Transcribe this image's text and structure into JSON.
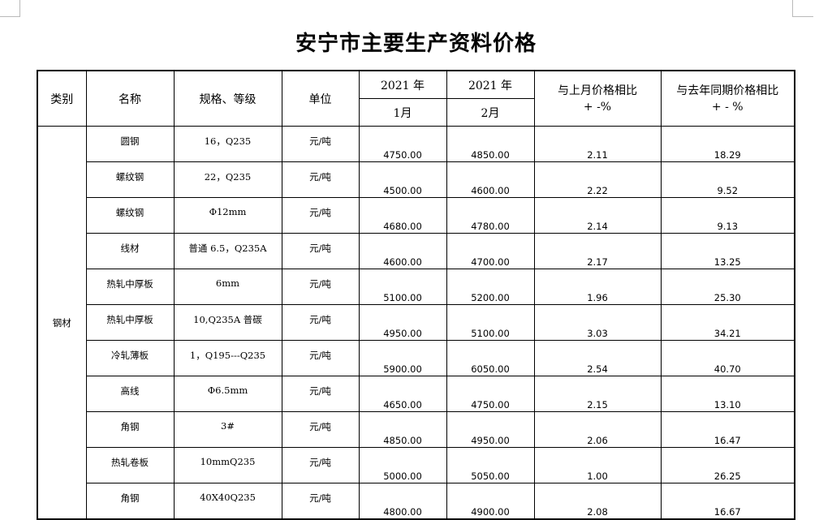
{
  "title": "安宁市主要生产资料价格",
  "headers": {
    "category": "类别",
    "name": "名称",
    "spec": "规格、等级",
    "unit": "单位",
    "year1": "2021 年",
    "year2": "2021 年",
    "month1": "1月",
    "month2": "2月",
    "vs_last_month_l1": "与上月价格相比",
    "vs_last_month_l2": "+ -%",
    "vs_last_year_l1": "与去年同期价格相比",
    "vs_last_year_l2": "+ - %"
  },
  "category": "钢材",
  "rows": [
    {
      "name": "圆钢",
      "spec": "16，Q235",
      "unit": "元/吨",
      "jan": "4750.00",
      "feb": "4850.00",
      "mom": "2.11",
      "yoy": "18.29"
    },
    {
      "name": "螺纹钢",
      "spec": "22，Q235",
      "unit": "元/吨",
      "jan": "4500.00",
      "feb": "4600.00",
      "mom": "2.22",
      "yoy": "9.52"
    },
    {
      "name": "螺纹钢",
      "spec": "Φ12mm",
      "unit": "元/吨",
      "jan": "4680.00",
      "feb": "4780.00",
      "mom": "2.14",
      "yoy": "9.13"
    },
    {
      "name": "线材",
      "spec": "普通 6.5，Q235A",
      "unit": "元/吨",
      "jan": "4600.00",
      "feb": "4700.00",
      "mom": "2.17",
      "yoy": "13.25"
    },
    {
      "name": "热轧中厚板",
      "spec": "6mm",
      "unit": "元/吨",
      "jan": "5100.00",
      "feb": "5200.00",
      "mom": "1.96",
      "yoy": "25.30"
    },
    {
      "name": "热轧中厚板",
      "spec": "10,Q235A 普碳",
      "unit": "元/吨",
      "jan": "4950.00",
      "feb": "5100.00",
      "mom": "3.03",
      "yoy": "34.21"
    },
    {
      "name": "冷轧薄板",
      "spec": "1，Q195---Q235",
      "unit": "元/吨",
      "jan": "5900.00",
      "feb": "6050.00",
      "mom": "2.54",
      "yoy": "40.70"
    },
    {
      "name": "高线",
      "spec": "Φ6.5mm",
      "unit": "元/吨",
      "jan": "4650.00",
      "feb": "4750.00",
      "mom": "2.15",
      "yoy": "13.10"
    },
    {
      "name": "角钢",
      "spec": "3#",
      "unit": "元/吨",
      "jan": "4850.00",
      "feb": "4950.00",
      "mom": "2.06",
      "yoy": "16.47"
    },
    {
      "name": "热轧卷板",
      "spec": "10mmQ235",
      "unit": "元/吨",
      "jan": "5000.00",
      "feb": "5050.00",
      "mom": "1.00",
      "yoy": "26.25"
    },
    {
      "name": "角钢",
      "spec": "40X40Q235",
      "unit": "元/吨",
      "jan": "4800.00",
      "feb": "4900.00",
      "mom": "2.08",
      "yoy": "16.67"
    }
  ]
}
